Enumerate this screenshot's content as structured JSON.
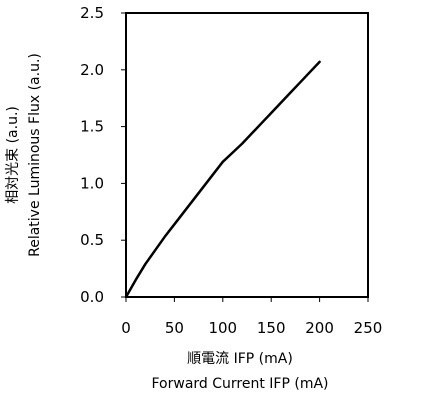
{
  "chart_data": {
    "type": "line",
    "title": "",
    "xlabel_line1": "順電流  IFP (mA)",
    "xlabel_line2": "Forward Current  IFP (mA)",
    "ylabel_line1": "相対光束 (a.u.)",
    "ylabel_line2": "Relative Luminous Flux (a.u.)",
    "xlim": [
      0,
      250
    ],
    "ylim": [
      0,
      2.5
    ],
    "xticks": [
      0,
      50,
      100,
      150,
      200,
      250
    ],
    "yticks": [
      0.0,
      0.5,
      1.0,
      1.5,
      2.0,
      2.5
    ],
    "xtick_labels": [
      "0",
      "50",
      "100",
      "150",
      "200",
      "250"
    ],
    "ytick_labels": [
      "0.0",
      "0.5",
      "1.0",
      "1.5",
      "2.0",
      "2.5"
    ],
    "grid": false,
    "line_color": "#000000",
    "series": [
      {
        "x": [
          0,
          10,
          20,
          30,
          40,
          50,
          60,
          70,
          80,
          90,
          100,
          110,
          120,
          130,
          140,
          150,
          160,
          170,
          180,
          190,
          200
        ],
        "y": [
          0.0,
          0.15,
          0.29,
          0.41,
          0.53,
          0.64,
          0.75,
          0.86,
          0.97,
          1.08,
          1.19,
          1.27,
          1.35,
          1.44,
          1.53,
          1.62,
          1.71,
          1.8,
          1.89,
          1.98,
          2.07
        ]
      }
    ]
  }
}
